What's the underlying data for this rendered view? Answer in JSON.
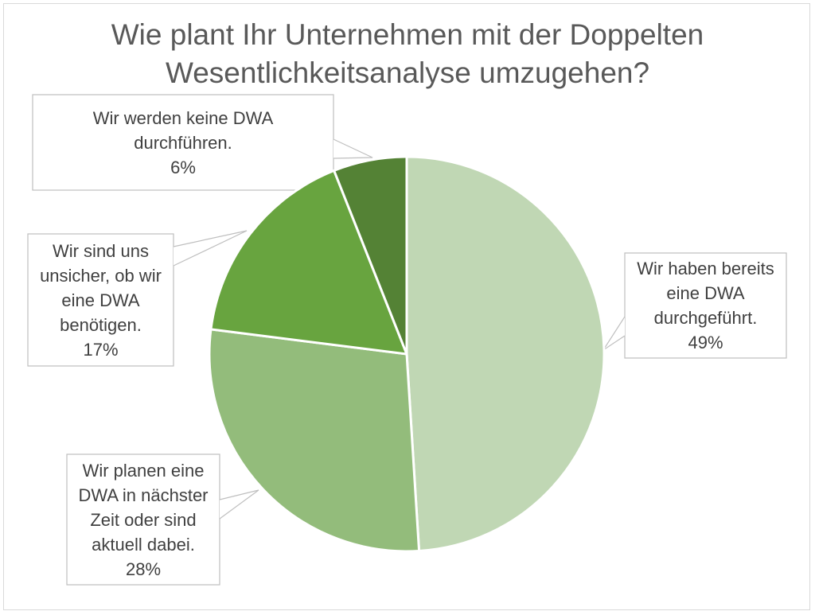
{
  "chart_data": {
    "type": "pie",
    "title_lines": [
      "Wie plant Ihr Unternehmen mit der Doppelten",
      "Wesentlichkeitsanalyse umzugehen?"
    ],
    "slices": [
      {
        "label_lines": [
          "Wir haben bereits",
          "eine DWA",
          "durchgeführt."
        ],
        "value": 49,
        "value_label": "49%",
        "color": "#c0d7b4"
      },
      {
        "label_lines": [
          "Wir planen eine",
          "DWA in nächster",
          "Zeit oder sind",
          "aktuell dabei."
        ],
        "value": 28,
        "value_label": "28%",
        "color": "#93bc7b"
      },
      {
        "label_lines": [
          "Wir sind uns",
          "unsicher, ob wir",
          "eine DWA",
          "benötigen."
        ],
        "value": 17,
        "value_label": "17%",
        "color": "#68a43f"
      },
      {
        "label_lines": [
          "Wir werden keine DWA",
          "durchführen."
        ],
        "value": 6,
        "value_label": "6%",
        "color": "#548235"
      }
    ]
  }
}
